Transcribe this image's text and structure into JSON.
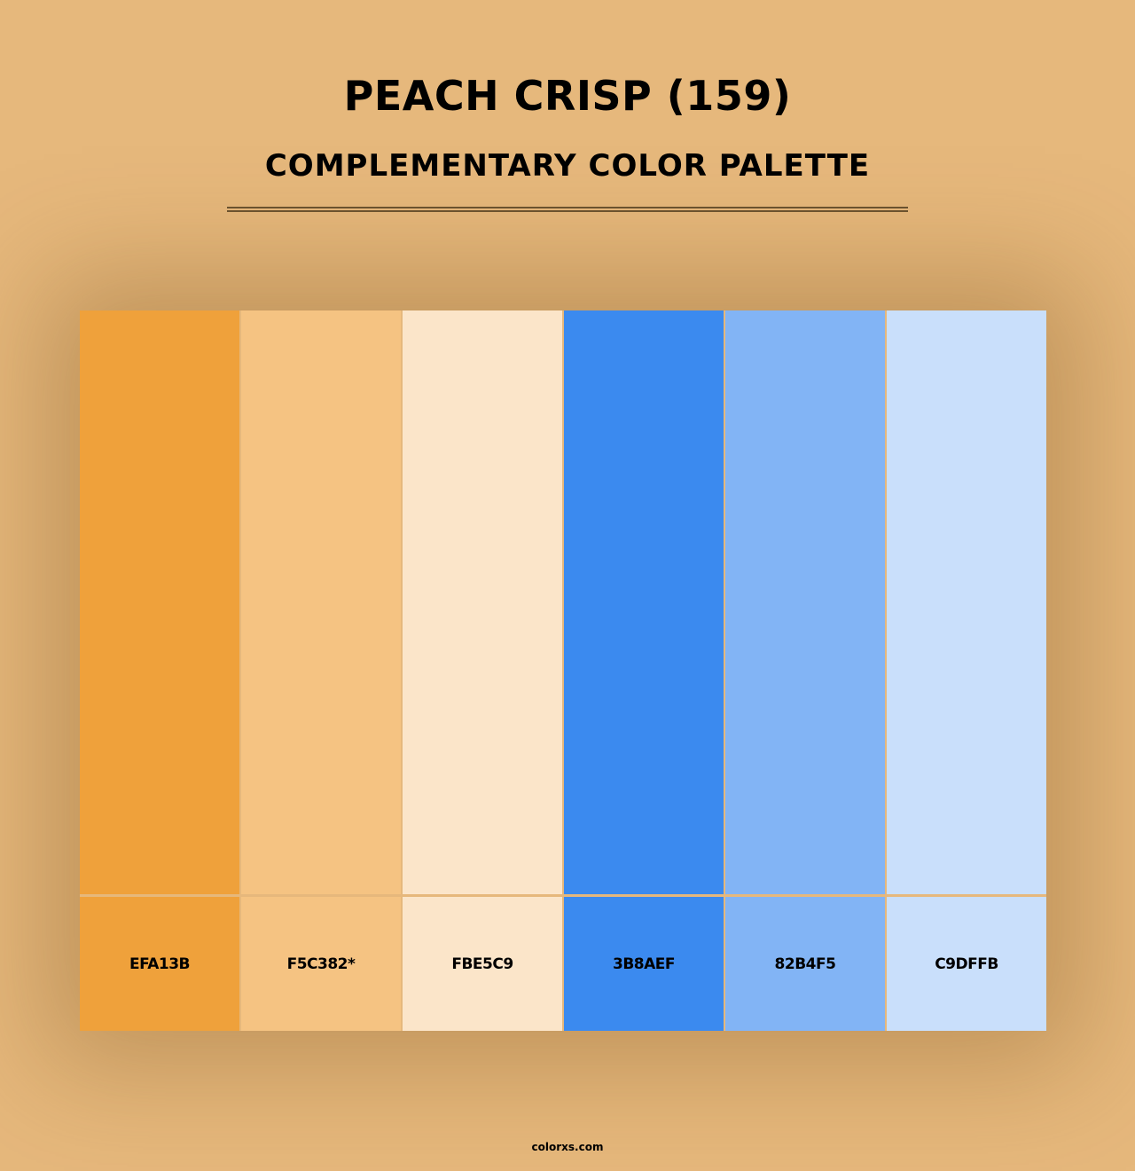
{
  "header": {
    "title": "PEACH CRISP (159)",
    "subtitle": "COMPLEMENTARY COLOR PALETTE"
  },
  "palette": [
    {
      "hex_label": "EFA13B",
      "color": "#EFA13B"
    },
    {
      "hex_label": "F5C382*",
      "color": "#F5C382"
    },
    {
      "hex_label": "FBE5C9",
      "color": "#FBE5C9"
    },
    {
      "hex_label": "3B8AEF",
      "color": "#3B8AEF"
    },
    {
      "hex_label": "82B4F5",
      "color": "#82B4F5"
    },
    {
      "hex_label": "C9DFFB",
      "color": "#C9DFFB"
    }
  ],
  "background_color": "#E6B87C",
  "footer": {
    "site": "colorxs.com"
  }
}
